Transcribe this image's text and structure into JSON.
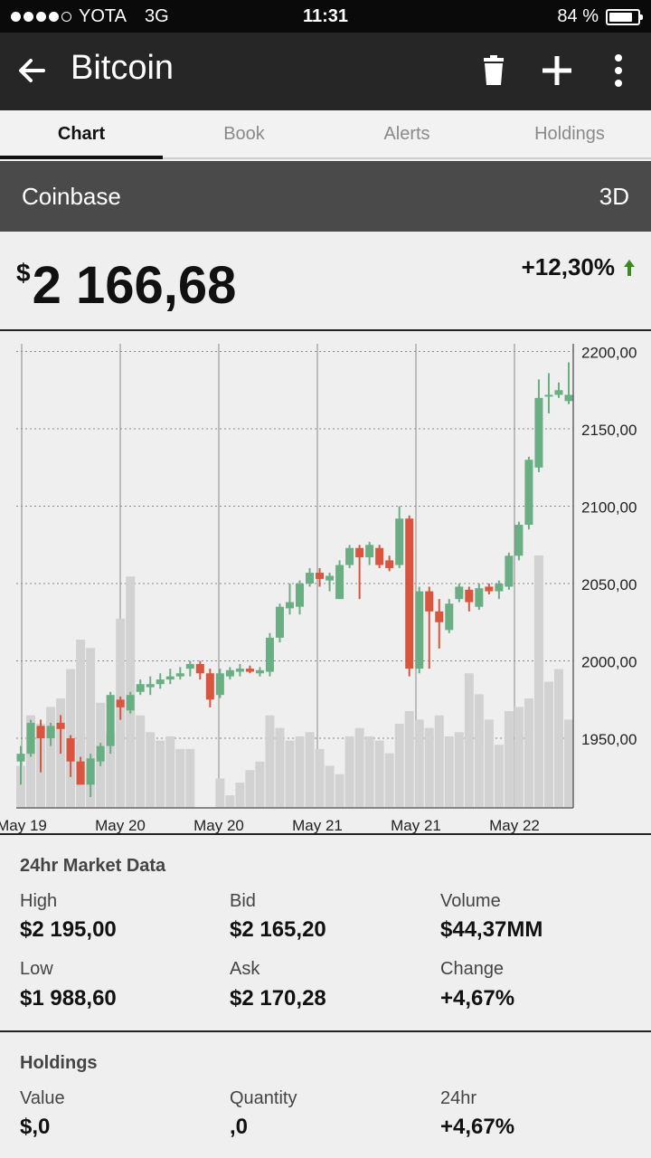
{
  "status": {
    "carrier": "YOTA",
    "network": "3G",
    "time": "11:31",
    "battery": "84 %",
    "battery_level": 0.84
  },
  "header": {
    "title": "Bitcoin",
    "icons": [
      "back-arrow-icon",
      "trash-icon",
      "plus-icon",
      "more-vertical-icon"
    ]
  },
  "tabs": [
    {
      "label": "Chart",
      "active": true
    },
    {
      "label": "Book",
      "active": false
    },
    {
      "label": "Alerts",
      "active": false
    },
    {
      "label": "Holdings",
      "active": false
    }
  ],
  "exchange": {
    "name": "Coinbase",
    "range": "3D"
  },
  "price": {
    "currency": "$",
    "value": "2 166,68",
    "change": "+12,30%",
    "change_color": "#3a8a1e"
  },
  "chart_data": {
    "type": "candlestick",
    "x_labels": [
      "May 19",
      "May 20",
      "May 20",
      "May 21",
      "May 21",
      "May 22"
    ],
    "y_ticks": [
      "2200,00",
      "2150,00",
      "2100,00",
      "2050,00",
      "2000,00",
      "1950,00"
    ],
    "ylim": [
      1905,
      2205
    ],
    "colors": {
      "up": "#6aae84",
      "down": "#d9553e",
      "volume": "#d2d2d2"
    },
    "candles": [
      [
        1935,
        1940,
        1920,
        1945
      ],
      [
        1940,
        1960,
        1938,
        1962
      ],
      [
        1958,
        1950,
        1928,
        1962
      ],
      [
        1950,
        1958,
        1945,
        1960
      ],
      [
        1960,
        1956,
        1940,
        1965
      ],
      [
        1950,
        1935,
        1925,
        1952
      ],
      [
        1935,
        1920,
        1920,
        1938
      ],
      [
        1920,
        1937,
        1912,
        1940
      ],
      [
        1935,
        1945,
        1932,
        1947
      ],
      [
        1945,
        1978,
        1940,
        1980
      ],
      [
        1975,
        1970,
        1962,
        1977
      ],
      [
        1968,
        1978,
        1966,
        1980
      ],
      [
        1980,
        1985,
        1978,
        1988
      ],
      [
        1983,
        1985,
        1978,
        1990
      ],
      [
        1985,
        1988,
        1982,
        1992
      ],
      [
        1988,
        1990,
        1985,
        1995
      ],
      [
        1990,
        1992,
        1988,
        1996
      ],
      [
        1995,
        1998,
        1990,
        2000
      ],
      [
        1998,
        1992,
        1988,
        2000
      ],
      [
        1992,
        1975,
        1970,
        1995
      ],
      [
        1978,
        1992,
        1976,
        1995
      ],
      [
        1990,
        1994,
        1988,
        1996
      ],
      [
        1993,
        1995,
        1990,
        1998
      ],
      [
        1995,
        1993,
        1992,
        1997
      ],
      [
        1992,
        1994,
        1990,
        1996
      ],
      [
        1993,
        2015,
        1990,
        2018
      ],
      [
        2015,
        2035,
        2012,
        2037
      ],
      [
        2034,
        2038,
        2030,
        2050
      ],
      [
        2035,
        2050,
        2030,
        2052
      ],
      [
        2050,
        2057,
        2048,
        2060
      ],
      [
        2057,
        2053,
        2048,
        2060
      ],
      [
        2052,
        2055,
        2045,
        2057
      ],
      [
        2040,
        2062,
        2040,
        2065
      ],
      [
        2062,
        2073,
        2060,
        2075
      ],
      [
        2073,
        2067,
        2040,
        2075
      ],
      [
        2067,
        2075,
        2062,
        2077
      ],
      [
        2073,
        2062,
        2060,
        2075
      ],
      [
        2065,
        2060,
        2058,
        2068
      ],
      [
        2062,
        2092,
        2060,
        2100
      ],
      [
        2092,
        1995,
        1990,
        2094
      ],
      [
        1995,
        2045,
        1992,
        2048
      ],
      [
        2045,
        2032,
        1995,
        2048
      ],
      [
        2032,
        2025,
        2008,
        2040
      ],
      [
        2020,
        2037,
        2018,
        2040
      ],
      [
        2040,
        2048,
        2038,
        2050
      ],
      [
        2046,
        2038,
        2032,
        2048
      ],
      [
        2035,
        2047,
        2033,
        2050
      ],
      [
        2048,
        2045,
        2043,
        2050
      ],
      [
        2045,
        2050,
        2040,
        2052
      ],
      [
        2048,
        2068,
        2046,
        2070
      ],
      [
        2068,
        2088,
        2065,
        2090
      ],
      [
        2088,
        2130,
        2085,
        2132
      ],
      [
        2125,
        2170,
        2122,
        2182
      ],
      [
        2172,
        2172,
        2160,
        2186
      ],
      [
        2172,
        2175,
        2170,
        2180
      ],
      [
        2168,
        2172,
        2166,
        2193
      ]
    ],
    "volume": [
      10,
      22,
      20,
      24,
      26,
      33,
      40,
      38,
      25,
      18,
      45,
      55,
      22,
      18,
      16,
      17,
      14,
      14,
      0,
      0,
      7,
      3,
      6,
      9,
      11,
      22,
      19,
      16,
      17,
      18,
      14,
      10,
      8,
      17,
      19,
      17,
      16,
      13,
      20,
      23,
      21,
      19,
      22,
      17,
      18,
      32,
      27,
      21,
      15,
      23,
      24,
      26,
      60,
      30,
      33,
      21
    ],
    "volume_max": 60
  },
  "market": {
    "title": "24hr Market Data",
    "cells": [
      {
        "label": "High",
        "value": "$2 195,00"
      },
      {
        "label": "Bid",
        "value": "$2 165,20"
      },
      {
        "label": "Volume",
        "value": "$44,37MM"
      },
      {
        "label": "Low",
        "value": "$1 988,60"
      },
      {
        "label": "Ask",
        "value": "$2 170,28"
      },
      {
        "label": "Change",
        "value": "+4,67%"
      }
    ]
  },
  "holdings": {
    "title": "Holdings",
    "cells": [
      {
        "label": "Value",
        "value": "$,0"
      },
      {
        "label": "Quantity",
        "value": ",0"
      },
      {
        "label": "24hr",
        "value": "+4,67%"
      }
    ]
  }
}
